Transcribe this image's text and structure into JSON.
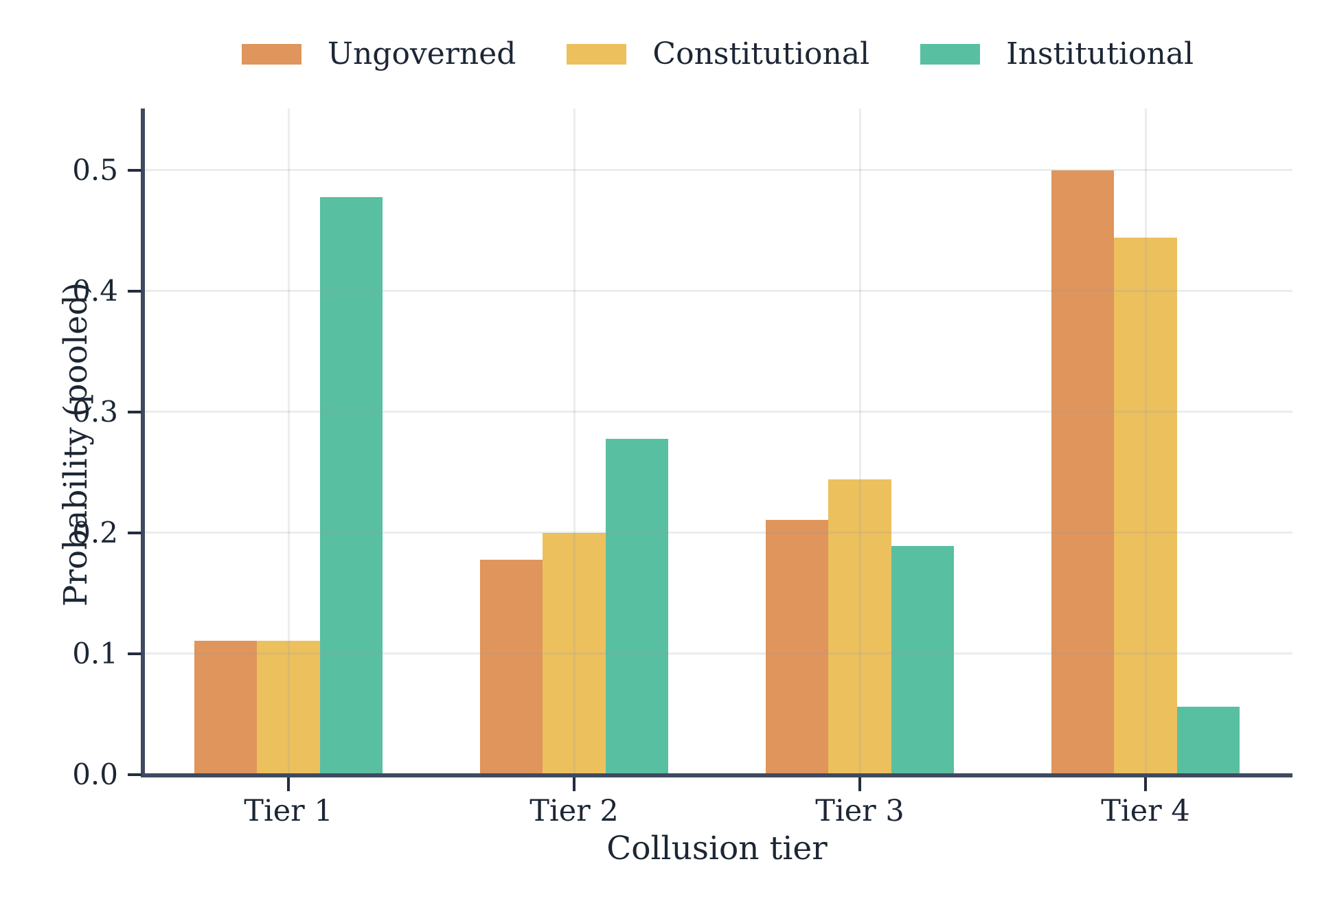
{
  "chart_data": {
    "type": "bar",
    "title": "",
    "xlabel": "Collusion tier",
    "ylabel": "Probability (pooled)",
    "categories": [
      "Tier 1",
      "Tier 2",
      "Tier 3",
      "Tier 4"
    ],
    "series": [
      {
        "name": "Ungoverned",
        "color": "#DF955B",
        "values": [
          0.111,
          0.178,
          0.211,
          0.5
        ]
      },
      {
        "name": "Constitutional",
        "color": "#EDC05E",
        "values": [
          0.111,
          0.2,
          0.244,
          0.444
        ]
      },
      {
        "name": "Institutional",
        "color": "#59BFA1",
        "values": [
          0.478,
          0.278,
          0.189,
          0.056
        ]
      }
    ],
    "ylim": [
      0,
      0.551
    ],
    "yticks": [
      0.0,
      0.1,
      0.2,
      0.3,
      0.4,
      0.5
    ],
    "ytick_labels": [
      "0.0",
      "0.1",
      "0.2",
      "0.3",
      "0.4",
      "0.5"
    ],
    "grid": true,
    "grid_axes": "both",
    "legend_position": "top-center",
    "bar_group_width_fraction": 0.66
  },
  "colors": {
    "background": "#FFFFFF",
    "text": "#1C2634",
    "spine": "#3E4A5F",
    "tick": "#232D3C",
    "gridline": "#EAEDF1"
  }
}
